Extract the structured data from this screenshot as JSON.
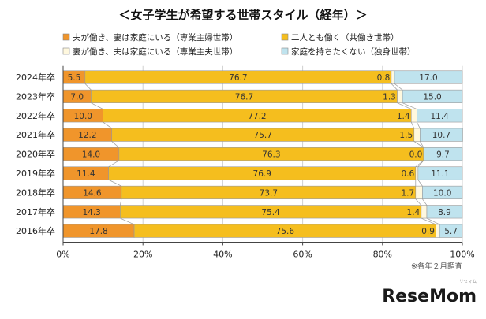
{
  "chart_data": {
    "type": "bar",
    "orientation": "horizontal",
    "stacked": true,
    "title": "＜女子学生が希望する世帯スタイル（経年）＞",
    "categories": [
      "2024年卒",
      "2023年卒",
      "2022年卒",
      "2021年卒",
      "2020年卒",
      "2019年卒",
      "2018年卒",
      "2017年卒",
      "2016年卒"
    ],
    "series": [
      {
        "name": "夫が働き、妻は家庭にいる（専業主婦世帯）",
        "color": "#F0952B",
        "values": [
          5.5,
          7.0,
          10.0,
          12.2,
          14.0,
          11.4,
          14.6,
          14.3,
          17.8
        ]
      },
      {
        "name": "二人とも働く（共働き世帯）",
        "color": "#F5BE1E",
        "values": [
          76.7,
          76.7,
          77.2,
          75.7,
          76.3,
          76.9,
          73.7,
          75.4,
          75.6
        ]
      },
      {
        "name": "妻が働き、夫は家庭にいる（専業主夫世帯）",
        "color": "#FFF8DE",
        "values": [
          0.8,
          1.3,
          1.4,
          1.5,
          0.0,
          0.6,
          1.7,
          1.4,
          0.9
        ]
      },
      {
        "name": "家庭を持ちたくない（独身世帯）",
        "color": "#BFE3EE",
        "values": [
          17.0,
          15.0,
          11.4,
          10.7,
          9.7,
          11.1,
          10.0,
          8.9,
          5.7
        ]
      }
    ],
    "value_labels": [
      [
        "5.5",
        "76.7",
        "0.8",
        "17.0"
      ],
      [
        "7.0",
        "76.7",
        "1.3",
        "15.0"
      ],
      [
        "10.0",
        "77.2",
        "1.4",
        "11.4"
      ],
      [
        "12.2",
        "75.7",
        "1.5",
        "10.7"
      ],
      [
        "14.0",
        "76.3",
        "0.0",
        "9.7"
      ],
      [
        "11.4",
        "76.9",
        "0.6",
        "11.1"
      ],
      [
        "14.6",
        "73.7",
        "1.7",
        "10.0"
      ],
      [
        "14.3",
        "75.4",
        "1.4",
        "8.9"
      ],
      [
        "17.8",
        "75.6",
        "0.9",
        "5.7"
      ]
    ],
    "xlim": [
      0,
      100
    ],
    "xticks": [
      "0%",
      "20%",
      "40%",
      "60%",
      "80%",
      "100%"
    ],
    "legend_position": "top",
    "note": "※各年２月調査"
  },
  "logo": {
    "text": "ReseMom",
    "subtext": "リセマム"
  }
}
